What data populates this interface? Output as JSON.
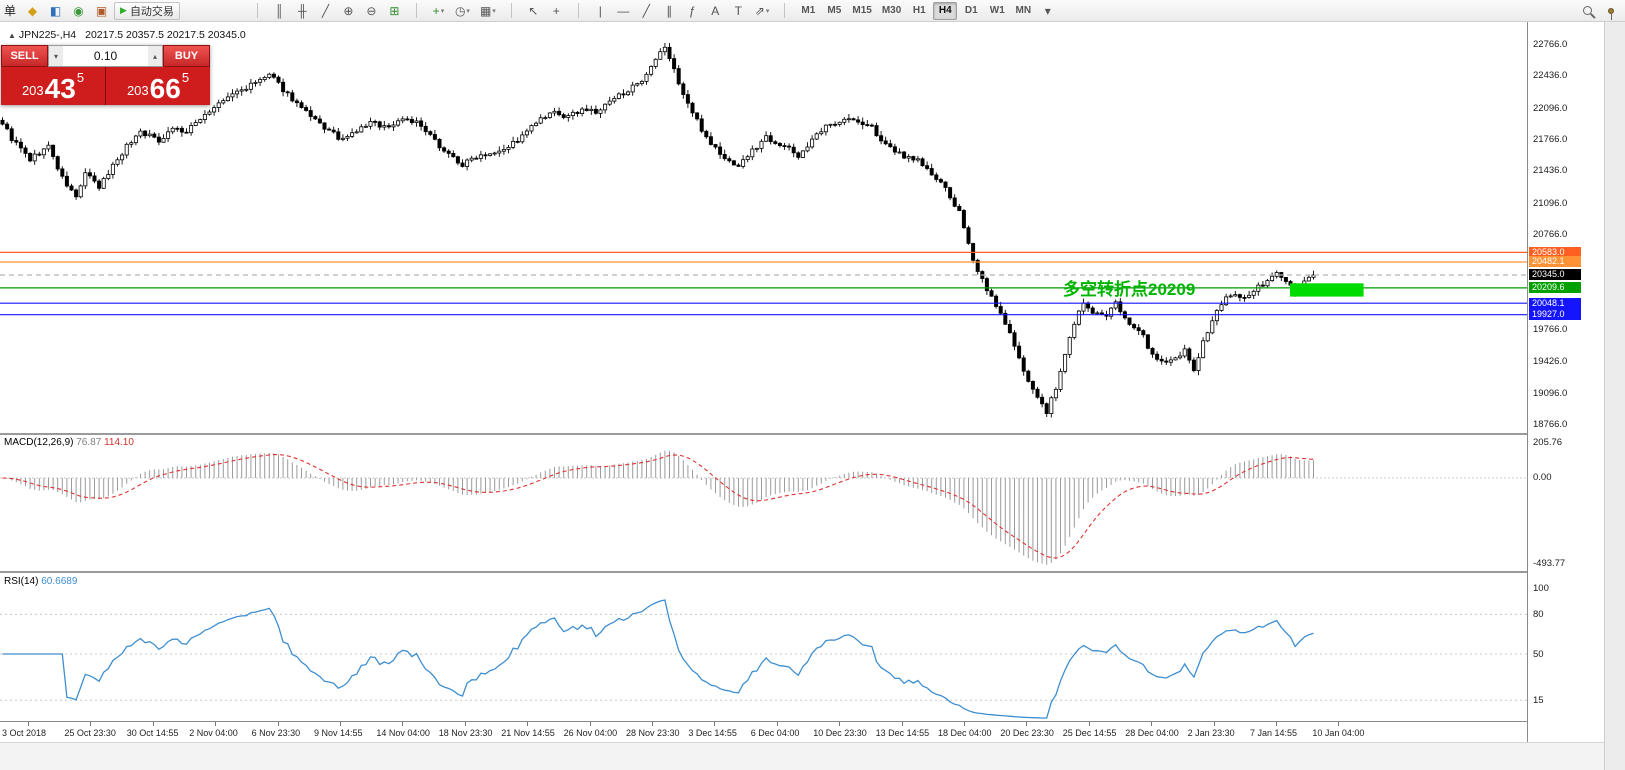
{
  "colors": {
    "candle_up": "#ffffff",
    "candle_down": "#000000",
    "candle_stroke": "#000000",
    "macd_hist": "#9b9b9b",
    "macd_signal": "#e03030",
    "rsi_line": "#3e8ed0",
    "level_dotted": "#c8c8c8",
    "trade_red": "#cf1d1d"
  },
  "icons": {
    "caret_up": "▴",
    "caret_down": "▾",
    "play": "▶",
    "collapse": "▲"
  },
  "toolbar": {
    "menu_char": "单",
    "left_icons": [
      {
        "name": "new-order-icon",
        "glyph": "◆",
        "color": "#d4a017"
      },
      {
        "name": "market-watch-icon",
        "glyph": "◧",
        "color": "#2e6fbd"
      },
      {
        "name": "navigator-icon",
        "glyph": "◉",
        "color": "#3a9a3a"
      },
      {
        "name": "terminal-icon",
        "glyph": "▣",
        "color": "#b05a2a"
      }
    ],
    "autotrade": {
      "label": "自动交易",
      "play_color": "#2fae2f"
    },
    "chart_tools": [
      {
        "name": "bar-chart-icon",
        "glyph": "║"
      },
      {
        "name": "candlestick-chart-icon",
        "glyph": "╫"
      },
      {
        "name": "line-chart-icon",
        "glyph": "╱"
      },
      {
        "name": "zoom-in-icon",
        "glyph": "⊕"
      },
      {
        "name": "zoom-out-icon",
        "glyph": "⊖"
      },
      {
        "name": "tile-windows-icon",
        "glyph": "⊞",
        "color": "#2e8b2e"
      }
    ],
    "object_tools": [
      {
        "name": "new-chart-icon",
        "glyph": "+",
        "color": "#2e8b2e",
        "caret": true
      },
      {
        "name": "period-icon",
        "glyph": "◷",
        "caret": true
      },
      {
        "name": "templates-icon",
        "glyph": "▦",
        "caret": true
      }
    ],
    "cursor_tools": [
      {
        "name": "cursor-icon",
        "glyph": "↖"
      },
      {
        "name": "crosshair-icon",
        "glyph": "+"
      }
    ],
    "draw_tools": [
      {
        "name": "vertical-line-icon",
        "glyph": "|"
      },
      {
        "name": "horizontal-line-icon",
        "glyph": "—"
      },
      {
        "name": "trendline-icon",
        "glyph": "╱"
      },
      {
        "name": "equidistant-channel-icon",
        "glyph": "∥"
      },
      {
        "name": "fibonacci-icon",
        "glyph": "ƒ"
      },
      {
        "name": "text-icon",
        "glyph": "A"
      },
      {
        "name": "label-icon",
        "glyph": "T"
      },
      {
        "name": "arrows-icon",
        "glyph": "⇗",
        "caret": true
      }
    ],
    "timeframes": [
      "M1",
      "M5",
      "M15",
      "M30",
      "H1",
      "H4",
      "D1",
      "W1",
      "MN"
    ],
    "active_timeframe": "H4",
    "overflow_caret": "▾",
    "caret_glyph": "▾",
    "right_icons": [
      {
        "name": "search-icon",
        "css": "mag"
      },
      {
        "name": "pin-icon",
        "css": "pinicon"
      }
    ]
  },
  "chart": {
    "title": "JPN225-,H4",
    "ohlc": "20217.5 20357.5 20217.5 20345.0",
    "trade_panel": {
      "sell_label": "SELL",
      "buy_label": "BUY",
      "volume": "0.10",
      "sell_price": {
        "prefix": "203",
        "big": "43",
        "sup": "5"
      },
      "buy_price": {
        "prefix": "203",
        "big": "66",
        "sup": "5"
      }
    },
    "annotation": {
      "text": "多空转折点20209",
      "color": "#00b400"
    },
    "price_axis": {
      "labels": [
        "22766.0",
        "22436.0",
        "22096.0",
        "21766.0",
        "21436.0",
        "21096.0",
        "20766.0",
        "19766.0",
        "19426.0",
        "19096.0",
        "18766.0"
      ],
      "tags": [
        {
          "text": "20583.0",
          "bg": "#ff5f1f"
        },
        {
          "text": "20482.1",
          "bg": "#ff9234"
        },
        {
          "text": "20345.0",
          "bg": "#000000"
        },
        {
          "text": "20209.6",
          "bg": "#00a000"
        },
        {
          "text": "20048.1",
          "bg": "#1414ff"
        },
        {
          "text": "19927.0",
          "bg": "#1414ff"
        }
      ]
    }
  },
  "macd": {
    "name": "MACD(12,26,9)",
    "value1": "76.87",
    "value2": "114.10",
    "axis": [
      "205.76",
      "0.00",
      "-493.77"
    ]
  },
  "rsi": {
    "name": "RSI(14)",
    "value": "60.6689",
    "axis": [
      "100",
      "80",
      "50",
      "15"
    ],
    "levels": [
      80,
      50,
      15
    ]
  },
  "time_axis": {
    "labels": [
      "3 Oct 2018",
      "25 Oct 23:30",
      "30 Oct 14:55",
      "2 Nov 04:00",
      "6 Nov 23:30",
      "9 Nov 14:55",
      "14 Nov 04:00",
      "18 Nov 23:30",
      "21 Nov 14:55",
      "26 Nov 04:00",
      "28 Nov 23:30",
      "3 Dec 14:55",
      "6 Dec 04:00",
      "10 Dec 23:30",
      "13 Dec 14:55",
      "18 Dec 04:00",
      "20 Dec 23:30",
      "25 Dec 14:55",
      "28 Dec 04:00",
      "2 Jan 23:30",
      "7 Jan 14:55",
      "10 Jan 04:00"
    ]
  },
  "chart_data": {
    "type": "candlestick",
    "symbol": "JPN225-",
    "timeframe": "H4",
    "ohlc_display": {
      "open": 20217.5,
      "high": 20357.5,
      "low": 20217.5,
      "close": 20345.0
    },
    "price_range": [
      18766.0,
      22766.0
    ],
    "bars": 286,
    "close_anchors": [
      [
        0,
        21950
      ],
      [
        2,
        21780
      ],
      [
        6,
        21560
      ],
      [
        10,
        21700
      ],
      [
        13,
        21360
      ],
      [
        16,
        21160
      ],
      [
        18,
        21420
      ],
      [
        21,
        21260
      ],
      [
        24,
        21500
      ],
      [
        27,
        21700
      ],
      [
        30,
        21860
      ],
      [
        34,
        21760
      ],
      [
        37,
        21900
      ],
      [
        40,
        21840
      ],
      [
        43,
        22000
      ],
      [
        47,
        22140
      ],
      [
        50,
        22250
      ],
      [
        54,
        22340
      ],
      [
        58,
        22450
      ],
      [
        61,
        22300
      ],
      [
        64,
        22150
      ],
      [
        67,
        22000
      ],
      [
        71,
        21860
      ],
      [
        74,
        21760
      ],
      [
        77,
        21860
      ],
      [
        80,
        21950
      ],
      [
        84,
        21900
      ],
      [
        87,
        22000
      ],
      [
        90,
        21950
      ],
      [
        93,
        21800
      ],
      [
        97,
        21620
      ],
      [
        100,
        21500
      ],
      [
        103,
        21600
      ],
      [
        107,
        21650
      ],
      [
        110,
        21700
      ],
      [
        113,
        21800
      ],
      [
        116,
        21950
      ],
      [
        120,
        22050
      ],
      [
        123,
        22000
      ],
      [
        126,
        22100
      ],
      [
        129,
        22050
      ],
      [
        133,
        22200
      ],
      [
        136,
        22300
      ],
      [
        139,
        22360
      ],
      [
        142,
        22600
      ],
      [
        144,
        22750
      ],
      [
        146,
        22500
      ],
      [
        148,
        22250
      ],
      [
        150,
        22050
      ],
      [
        153,
        21800
      ],
      [
        157,
        21560
      ],
      [
        160,
        21500
      ],
      [
        163,
        21650
      ],
      [
        166,
        21800
      ],
      [
        170,
        21700
      ],
      [
        173,
        21600
      ],
      [
        176,
        21760
      ],
      [
        179,
        21900
      ],
      [
        183,
        22000
      ],
      [
        186,
        21950
      ],
      [
        189,
        21900
      ],
      [
        192,
        21700
      ],
      [
        196,
        21600
      ],
      [
        199,
        21560
      ],
      [
        202,
        21400
      ],
      [
        205,
        21250
      ],
      [
        208,
        21000
      ],
      [
        210,
        20650
      ],
      [
        212,
        20400
      ],
      [
        214,
        20200
      ],
      [
        216,
        20000
      ],
      [
        218,
        19850
      ],
      [
        221,
        19450
      ],
      [
        223,
        19250
      ],
      [
        225,
        19050
      ],
      [
        227,
        18900
      ],
      [
        229,
        19150
      ],
      [
        231,
        19500
      ],
      [
        233,
        19850
      ],
      [
        235,
        20050
      ],
      [
        237,
        19950
      ],
      [
        240,
        19900
      ],
      [
        242,
        20050
      ],
      [
        244,
        19900
      ],
      [
        246,
        19800
      ],
      [
        248,
        19700
      ],
      [
        250,
        19500
      ],
      [
        253,
        19400
      ],
      [
        255,
        19450
      ],
      [
        257,
        19550
      ],
      [
        259,
        19350
      ],
      [
        261,
        19650
      ],
      [
        264,
        19950
      ],
      [
        266,
        20100
      ],
      [
        268,
        20150
      ],
      [
        270,
        20100
      ],
      [
        272,
        20180
      ],
      [
        274,
        20250
      ],
      [
        277,
        20380
      ],
      [
        279,
        20300
      ],
      [
        281,
        20150
      ],
      [
        283,
        20280
      ],
      [
        285,
        20345
      ]
    ],
    "hlines": [
      {
        "price": 20583.0,
        "color": "#ff5f1f",
        "style": "solid"
      },
      {
        "price": 20482.1,
        "color": "#ff9234",
        "style": "solid"
      },
      {
        "price": 20345.0,
        "color": "#b4b4b4",
        "style": "dashed"
      },
      {
        "price": 20209.6,
        "color": "#009a00",
        "style": "solid"
      },
      {
        "price": 20048.1,
        "color": "#1414ff",
        "style": "solid"
      },
      {
        "price": 19927.0,
        "color": "#1414ff",
        "style": "solid"
      }
    ],
    "highlight_box": {
      "bar_from": 280,
      "bar_to": 296,
      "price_top": 20258,
      "price_bottom": 20118,
      "color": "#00dc00"
    },
    "indicators": [
      {
        "name": "MACD",
        "params": "12,26,9",
        "values": [
          76.87,
          114.1
        ]
      },
      {
        "name": "RSI",
        "params": "14",
        "value": 60.6689
      }
    ]
  }
}
